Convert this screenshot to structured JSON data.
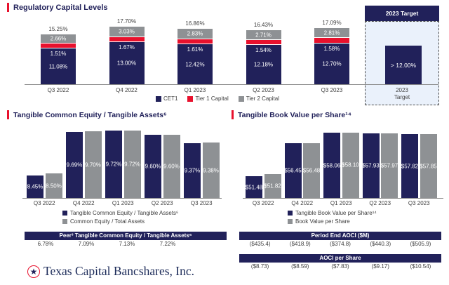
{
  "footer": {
    "company": "Texas Capital Bancshares, Inc.",
    "star_icon": "★"
  },
  "chart_data": [
    {
      "id": "regulatory_capital",
      "type": "bar",
      "stacked": true,
      "title": "Regulatory Capital Levels",
      "categories": [
        "Q3 2022",
        "Q4 2022",
        "Q1 2023",
        "Q2 2023",
        "Q3 2023"
      ],
      "series": [
        {
          "name": "CET1",
          "color": "#21215A",
          "values": [
            11.08,
            13.0,
            12.42,
            12.18,
            12.7
          ],
          "labels": [
            "11.08%",
            "13.00%",
            "12.42%",
            "12.18%",
            "12.70%"
          ]
        },
        {
          "name": "Tier 1 Capital",
          "color": "#E8112D",
          "values": [
            1.51,
            1.67,
            1.61,
            1.54,
            1.58
          ],
          "labels": [
            "1.51%",
            "1.67%",
            "1.61%",
            "1.54%",
            "1.58%"
          ]
        },
        {
          "name": "Tier 2 Capital",
          "color": "#8E9194",
          "values": [
            2.66,
            3.03,
            2.83,
            2.71,
            2.81
          ],
          "labels": [
            "2.66%",
            "3.03%",
            "2.83%",
            "2.71%",
            "2.81%"
          ]
        }
      ],
      "totals": [
        "15.25%",
        "17.70%",
        "16.86%",
        "16.43%",
        "17.09%"
      ],
      "ylim": [
        0,
        19.3
      ],
      "legend_position": "bottom",
      "target": {
        "header": "2023 Target",
        "bar_label": "> 12.00%",
        "bar_value": 12.0,
        "axis_label_line1": "2023",
        "axis_label_line2": "Target"
      }
    },
    {
      "id": "tce_tangible_assets",
      "type": "bar",
      "stacked": false,
      "title": "Tangible Common Equity / Tangible Assets⁶",
      "categories": [
        "Q3 2022",
        "Q4 2022",
        "Q1 2023",
        "Q2 2023",
        "Q3 2023"
      ],
      "series": [
        {
          "name": "Tangible Common Equity / Tangible Assets⁶",
          "color": "#21215A",
          "values": [
            8.45,
            9.69,
            9.72,
            9.6,
            9.37
          ],
          "labels": [
            "8.45%",
            "9.69%",
            "9.72%",
            "9.60%",
            "9.37%"
          ]
        },
        {
          "name": "Common Equity / Total Assets",
          "color": "#8E9194",
          "values": [
            8.5,
            9.7,
            9.72,
            9.6,
            9.38
          ],
          "labels": [
            "8.50%",
            "9.70%",
            "9.72%",
            "9.60%",
            "9.38%"
          ]
        }
      ],
      "ylim": [
        7.8,
        9.9
      ],
      "legend_position": "bottom",
      "peer_table": {
        "header": "Peer³ Tangible Common Equity / Tangible Assets⁶",
        "values": [
          "6.78%",
          "7.09%",
          "7.13%",
          "7.22%"
        ]
      }
    },
    {
      "id": "tangible_book_value",
      "type": "bar",
      "stacked": false,
      "title": "Tangible Book Value per Share¹⁴",
      "categories": [
        "Q3 2022",
        "Q4 2022",
        "Q1 2023",
        "Q2 2023",
        "Q3 2023"
      ],
      "series": [
        {
          "name": "Tangible Book Value per Share¹⁴",
          "color": "#21215A",
          "values": [
            51.48,
            56.45,
            58.06,
            57.93,
            57.82
          ],
          "labels": [
            "$51.48",
            "$56.45",
            "$58.06",
            "$57.93",
            "$57.82"
          ]
        },
        {
          "name": "Book Value per Share",
          "color": "#8E9194",
          "values": [
            51.82,
            56.48,
            58.1,
            57.97,
            57.85
          ],
          "labels": [
            "$51.82",
            "$56.48",
            "$58.10",
            "$57.97",
            "$57.85"
          ]
        }
      ],
      "ylim": [
        48.2,
        58.9
      ],
      "legend_position": "bottom",
      "tables": [
        {
          "header": "Period End AOCI ($M)",
          "values": [
            "($435.4)",
            "($418.9)",
            "($374.8)",
            "($440.3)",
            "($505.9)"
          ]
        },
        {
          "header": "AOCI per Share",
          "values": [
            "($8.73)",
            "($8.59)",
            "($7.83)",
            "($9.17)",
            "($10.54)"
          ]
        }
      ]
    }
  ]
}
